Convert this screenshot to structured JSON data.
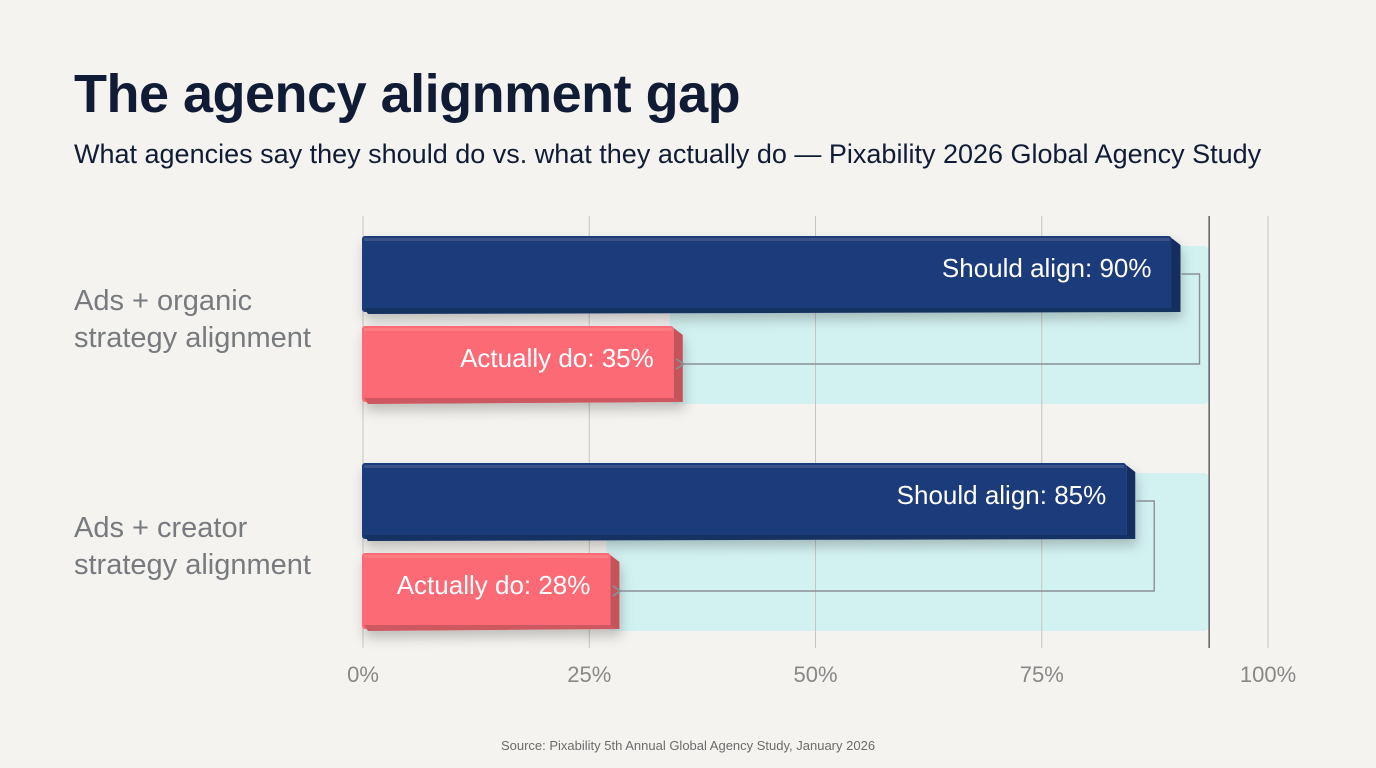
{
  "title": "The agency alignment gap",
  "subtitle": "What agencies say they should do vs. what they actually do — Pixability 2026 Global Agency Study",
  "source": "Source: Pixability 5th Annual Global Agency Study, January 2026",
  "colors": {
    "should": "#1f3a7a",
    "actual": "#fb6b74",
    "gap_band": "#d2f2f1",
    "grid": "#c8c5c0",
    "connector": "#8a8f96"
  },
  "chart_data": {
    "type": "bar",
    "orientation": "horizontal",
    "categories": [
      [
        "Ads + organic",
        "strategy alignment"
      ],
      [
        "Ads + creator",
        "strategy alignment"
      ]
    ],
    "series": [
      {
        "key": "should",
        "values": [
          90,
          85
        ],
        "labels": [
          "Should align: 90%",
          "Should align: 85%"
        ]
      },
      {
        "key": "actual",
        "values": [
          35,
          28
        ],
        "labels": [
          "Actually do: 35%",
          "Actually do: 28%"
        ]
      }
    ],
    "xlim": [
      0,
      100
    ],
    "xticks": [
      0,
      25,
      50,
      75,
      100
    ],
    "xtick_labels": [
      "0%",
      "25%",
      "50%",
      "75%",
      "100%"
    ],
    "grid": true
  }
}
